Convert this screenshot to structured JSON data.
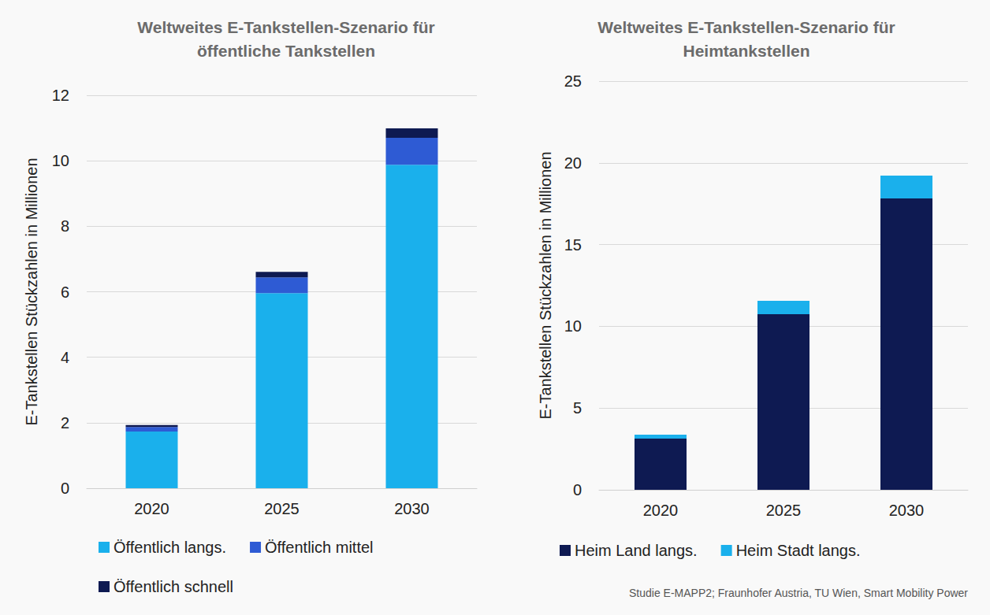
{
  "chart_data": [
    {
      "type": "bar",
      "title": "Weltweites E-Tankstellen-Szenario für\nöffentliche Tankstellen",
      "y_label": "E-Tankstellen Stückzahlen in Millionen",
      "categories": [
        "2020",
        "2025",
        "2030"
      ],
      "series": [
        {
          "name": "Öffentlich langs.",
          "color": "#1ab0ec",
          "values": [
            1.73,
            5.96,
            9.88
          ]
        },
        {
          "name": "Öffentlich mittel",
          "color": "#2e5bd4",
          "values": [
            0.14,
            0.48,
            0.82
          ]
        },
        {
          "name": "Öffentlich schnell",
          "color": "#0e1a52",
          "values": [
            0.06,
            0.17,
            0.29
          ]
        }
      ],
      "ylim": [
        0,
        12
      ],
      "yticks": [
        0,
        2,
        4,
        6,
        8,
        10,
        12
      ],
      "stacked": true,
      "grid": true,
      "legend": "bottom"
    },
    {
      "type": "bar",
      "title": "Weltweites E-Tankstellen-Szenario für\nHeimtankstellen",
      "y_label": "E-Tankstellen Stückzahlen in Millionen",
      "categories": [
        "2020",
        "2025",
        "2030"
      ],
      "series": [
        {
          "name": "Heim Land langs.",
          "color": "#0e1a52",
          "values": [
            3.13,
            10.74,
            17.82
          ]
        },
        {
          "name": "Heim Stadt langs.",
          "color": "#1ab0ec",
          "values": [
            0.24,
            0.82,
            1.4
          ]
        }
      ],
      "ylim": [
        0,
        25
      ],
      "yticks": [
        0,
        5,
        10,
        15,
        20,
        25
      ],
      "stacked": true,
      "grid": true,
      "legend": "bottom"
    }
  ],
  "source": "Studie E-MAPP2; Fraunhofer Austria, TU Wien, Smart Mobility Power"
}
